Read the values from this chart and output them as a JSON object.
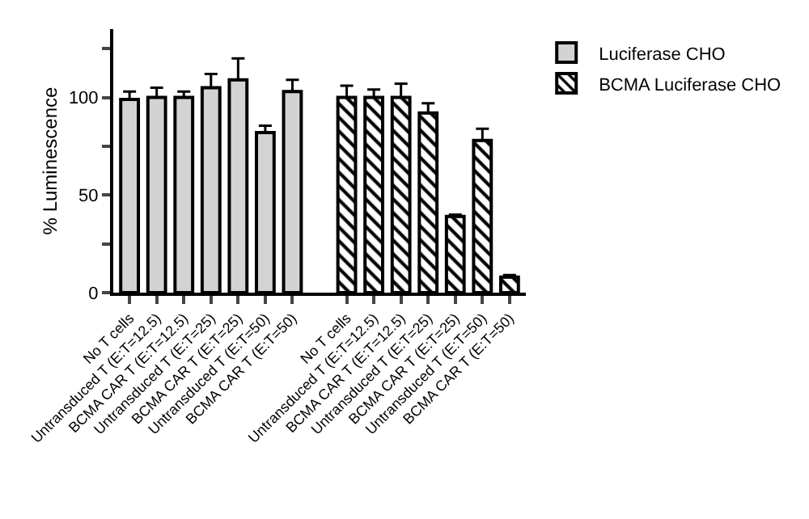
{
  "chart_data": {
    "type": "bar",
    "ylabel": "% Luminescence",
    "categories": [
      "No T cells",
      "Untransduced T (E:T=12.5)",
      "BCMA CAR T (E:T=12.5)",
      "Untransduced T (E:T=25)",
      "BCMA CAR T (E:T=25)",
      "Untransduced T (E:T=50)",
      "BCMA CAR T (E:T=50)",
      null,
      "No T cells",
      "Untransduced T (E:T=12.5)",
      "BCMA CAR T (E:T=12.5)",
      "Untransduced T (E:T=25)",
      "BCMA CAR T (E:T=25)",
      "Untransduced T (E:T=50)",
      "BCMA CAR T (E:T=50)"
    ],
    "series": [
      {
        "name": "Luciferase CHO",
        "color": "#d3d3d3",
        "values": [
          99,
          100,
          100,
          105,
          109,
          82,
          103,
          null,
          null,
          null,
          null,
          null,
          null,
          null,
          null
        ],
        "errors": [
          [
            99,
            103
          ],
          [
            100,
            105
          ],
          [
            100,
            103
          ],
          [
            105,
            112
          ],
          [
            109,
            120
          ],
          [
            82,
            85.5
          ],
          [
            103,
            109
          ],
          null,
          null,
          null,
          null,
          null,
          null,
          null,
          null
        ]
      },
      {
        "name": "BCMA Luciferase CHO",
        "color": "#000000",
        "values": [
          null,
          null,
          null,
          null,
          null,
          null,
          null,
          null,
          100,
          100,
          100,
          92,
          39,
          78,
          8
        ],
        "errors": [
          null,
          null,
          null,
          null,
          null,
          null,
          null,
          null,
          [
            100,
            106
          ],
          [
            100,
            104
          ],
          [
            100,
            107
          ],
          [
            92,
            97
          ],
          [
            39,
            40
          ],
          [
            78,
            84
          ],
          [
            8,
            9
          ]
        ]
      }
    ],
    "ylim": [
      0,
      135
    ],
    "yticks": [
      0,
      {
        "value": 25,
        "label": null
      },
      50,
      {
        "value": 75,
        "label": null
      },
      100,
      {
        "value": 125,
        "label": null
      }
    ],
    "grid": false,
    "legend": "top right"
  }
}
